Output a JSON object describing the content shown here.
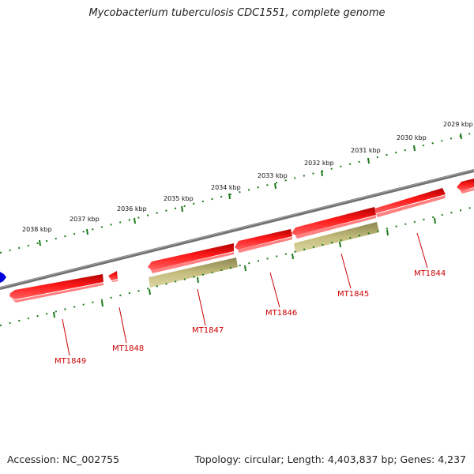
{
  "title": "Mycobacterium tuberculosis CDC1551, complete genome",
  "footer": {
    "accession": "Accession: NC_002755",
    "summary": "Topology: circular; Length: 4,403,837 bp; Genes: 4,237"
  },
  "colors": {
    "backbone": "#808080",
    "ticks": "#1a7a1a",
    "forward_gene": "#e00000",
    "reverse_gene": "#b8b070",
    "label": "#cc0000",
    "marker": "#0000dd"
  },
  "scale_labels": [
    "2038 kbp",
    "2037 kbp",
    "2036 kbp",
    "2035 kbp",
    "2034 kbp",
    "2033 kbp",
    "2032 kbp",
    "2031 kbp",
    "2030 kbp",
    "2029 kbp"
  ],
  "gene_labels": [
    "MT1849",
    "MT1848",
    "MT1847",
    "MT1846",
    "MT1845",
    "MT1844"
  ]
}
